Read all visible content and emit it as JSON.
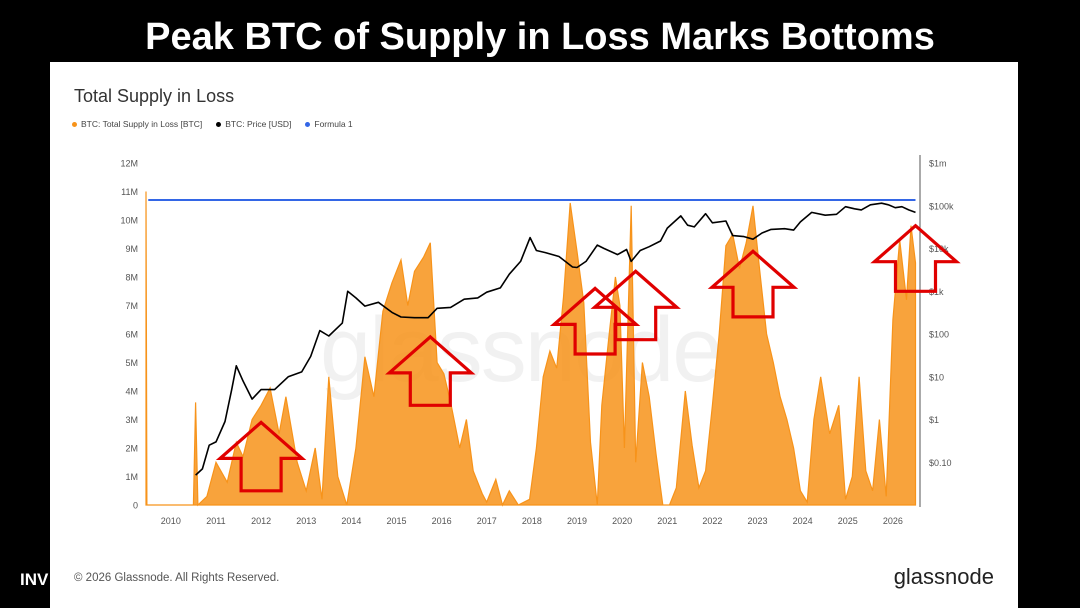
{
  "headline": "Peak BTC of Supply in Loss Marks Bottoms",
  "left_fragment": "INV",
  "footer": {
    "copyright": "© 2026 Glassnode. All Rights Reserved.",
    "logo": "glassnode"
  },
  "watermark": "glassnode",
  "colors": {
    "supply": "#F7931A",
    "price": "#000000",
    "formula": "#3366E6",
    "arrow": "#E00000"
  },
  "chart_data": {
    "type": "area",
    "title": "Total Supply in Loss",
    "legend": [
      {
        "name": "BTC: Total Supply in Loss [BTC]",
        "color": "#F7931A"
      },
      {
        "name": "BTC: Price [USD]",
        "color": "#000000"
      },
      {
        "name": "Formula 1",
        "color": "#3366E6"
      }
    ],
    "legend_position": "top-left",
    "x_ticks": [
      "2010",
      "2011",
      "2012",
      "2013",
      "2014",
      "2015",
      "2016",
      "2017",
      "2018",
      "2019",
      "2020",
      "2021",
      "2022",
      "2023",
      "2024",
      "2025",
      "2026"
    ],
    "xlim": [
      2009.45,
      2026.6
    ],
    "y_left_ticks": [
      "0",
      "1M",
      "2M",
      "3M",
      "4M",
      "5M",
      "6M",
      "7M",
      "8M",
      "9M",
      "10M",
      "11M",
      "12M"
    ],
    "ylim_left": [
      0,
      12000000
    ],
    "y_right_ticks": [
      "$0.10",
      "$1",
      "$10",
      "$100",
      "$1k",
      "$10k",
      "$100k",
      "$1m"
    ],
    "ylim_right": [
      0.01,
      1000000
    ],
    "y_right_scale": "log",
    "grid": false,
    "series": [
      {
        "name": "BTC: Total Supply in Loss [BTC]",
        "axis": "left",
        "points": [
          [
            2009.45,
            11000000
          ],
          [
            2009.47,
            0
          ],
          [
            2010.5,
            0
          ],
          [
            2010.55,
            3600000
          ],
          [
            2010.6,
            0
          ],
          [
            2010.8,
            300000
          ],
          [
            2011.0,
            1500000
          ],
          [
            2011.25,
            800000
          ],
          [
            2011.45,
            2200000
          ],
          [
            2011.6,
            1700000
          ],
          [
            2011.8,
            3000000
          ],
          [
            2012.0,
            3500000
          ],
          [
            2012.2,
            4100000
          ],
          [
            2012.4,
            2500000
          ],
          [
            2012.55,
            3800000
          ],
          [
            2012.8,
            1500000
          ],
          [
            2013.0,
            500000
          ],
          [
            2013.2,
            2000000
          ],
          [
            2013.35,
            200000
          ],
          [
            2013.5,
            4500000
          ],
          [
            2013.7,
            1000000
          ],
          [
            2013.9,
            0
          ],
          [
            2014.1,
            2000000
          ],
          [
            2014.3,
            5200000
          ],
          [
            2014.5,
            3800000
          ],
          [
            2014.7,
            6800000
          ],
          [
            2014.9,
            7800000
          ],
          [
            2015.1,
            8600000
          ],
          [
            2015.25,
            7000000
          ],
          [
            2015.4,
            8200000
          ],
          [
            2015.6,
            8700000
          ],
          [
            2015.75,
            9200000
          ],
          [
            2015.9,
            5000000
          ],
          [
            2016.05,
            4600000
          ],
          [
            2016.2,
            3600000
          ],
          [
            2016.4,
            2000000
          ],
          [
            2016.55,
            3000000
          ],
          [
            2016.7,
            1200000
          ],
          [
            2016.9,
            400000
          ],
          [
            2017.0,
            100000
          ],
          [
            2017.2,
            900000
          ],
          [
            2017.35,
            0
          ],
          [
            2017.5,
            500000
          ],
          [
            2017.7,
            0
          ],
          [
            2017.95,
            200000
          ],
          [
            2018.1,
            2000000
          ],
          [
            2018.25,
            4500000
          ],
          [
            2018.4,
            5400000
          ],
          [
            2018.55,
            4800000
          ],
          [
            2018.7,
            7300000
          ],
          [
            2018.85,
            10600000
          ],
          [
            2019.0,
            8900000
          ],
          [
            2019.15,
            7100000
          ],
          [
            2019.3,
            2200000
          ],
          [
            2019.45,
            0
          ],
          [
            2019.55,
            3500000
          ],
          [
            2019.7,
            5800000
          ],
          [
            2019.85,
            8000000
          ],
          [
            2019.95,
            7000000
          ],
          [
            2020.05,
            2000000
          ],
          [
            2020.2,
            10500000
          ],
          [
            2020.3,
            1500000
          ],
          [
            2020.45,
            5000000
          ],
          [
            2020.6,
            3800000
          ],
          [
            2020.75,
            1800000
          ],
          [
            2020.9,
            0
          ],
          [
            2021.05,
            0
          ],
          [
            2021.2,
            600000
          ],
          [
            2021.4,
            4000000
          ],
          [
            2021.55,
            2100000
          ],
          [
            2021.7,
            600000
          ],
          [
            2021.85,
            1200000
          ],
          [
            2022.0,
            3500000
          ],
          [
            2022.15,
            6000000
          ],
          [
            2022.3,
            9100000
          ],
          [
            2022.45,
            9500000
          ],
          [
            2022.6,
            8300000
          ],
          [
            2022.75,
            9200000
          ],
          [
            2022.9,
            10500000
          ],
          [
            2023.05,
            8200000
          ],
          [
            2023.2,
            6000000
          ],
          [
            2023.35,
            5000000
          ],
          [
            2023.5,
            3800000
          ],
          [
            2023.65,
            3000000
          ],
          [
            2023.8,
            2000000
          ],
          [
            2023.95,
            500000
          ],
          [
            2024.1,
            100000
          ],
          [
            2024.25,
            3000000
          ],
          [
            2024.4,
            4500000
          ],
          [
            2024.6,
            2500000
          ],
          [
            2024.8,
            3500000
          ],
          [
            2024.95,
            200000
          ],
          [
            2025.1,
            1000000
          ],
          [
            2025.25,
            4500000
          ],
          [
            2025.4,
            1200000
          ],
          [
            2025.55,
            500000
          ],
          [
            2025.7,
            3000000
          ],
          [
            2025.85,
            300000
          ],
          [
            2026.0,
            6500000
          ],
          [
            2026.15,
            9300000
          ],
          [
            2026.3,
            7200000
          ],
          [
            2026.4,
            9800000
          ],
          [
            2026.5,
            8500000
          ]
        ]
      },
      {
        "name": "BTC: Price [USD]",
        "axis": "right",
        "points": [
          [
            2010.55,
            0.05
          ],
          [
            2010.7,
            0.07
          ],
          [
            2010.85,
            0.25
          ],
          [
            2011.0,
            0.3
          ],
          [
            2011.2,
            0.9
          ],
          [
            2011.35,
            5
          ],
          [
            2011.45,
            18
          ],
          [
            2011.6,
            8
          ],
          [
            2011.8,
            3
          ],
          [
            2012.0,
            5
          ],
          [
            2012.3,
            5
          ],
          [
            2012.6,
            10
          ],
          [
            2012.9,
            13
          ],
          [
            2013.1,
            30
          ],
          [
            2013.3,
            120
          ],
          [
            2013.5,
            90
          ],
          [
            2013.8,
            180
          ],
          [
            2013.92,
            1000
          ],
          [
            2014.1,
            700
          ],
          [
            2014.3,
            450
          ],
          [
            2014.6,
            550
          ],
          [
            2014.9,
            320
          ],
          [
            2015.1,
            250
          ],
          [
            2015.4,
            240
          ],
          [
            2015.7,
            240
          ],
          [
            2015.9,
            400
          ],
          [
            2016.2,
            420
          ],
          [
            2016.5,
            650
          ],
          [
            2016.8,
            700
          ],
          [
            2017.0,
            950
          ],
          [
            2017.3,
            1200
          ],
          [
            2017.5,
            2500
          ],
          [
            2017.75,
            5000
          ],
          [
            2017.96,
            18000
          ],
          [
            2018.1,
            9000
          ],
          [
            2018.3,
            8000
          ],
          [
            2018.6,
            6500
          ],
          [
            2018.9,
            3700
          ],
          [
            2019.0,
            3600
          ],
          [
            2019.2,
            5000
          ],
          [
            2019.45,
            12000
          ],
          [
            2019.6,
            10000
          ],
          [
            2019.9,
            7200
          ],
          [
            2020.1,
            9500
          ],
          [
            2020.2,
            5000
          ],
          [
            2020.4,
            9000
          ],
          [
            2020.6,
            11000
          ],
          [
            2020.85,
            15000
          ],
          [
            2021.0,
            30000
          ],
          [
            2021.3,
            58000
          ],
          [
            2021.45,
            35000
          ],
          [
            2021.6,
            32000
          ],
          [
            2021.85,
            65000
          ],
          [
            2022.0,
            40000
          ],
          [
            2022.3,
            44000
          ],
          [
            2022.45,
            20000
          ],
          [
            2022.7,
            19000
          ],
          [
            2022.9,
            16500
          ],
          [
            2023.1,
            23000
          ],
          [
            2023.3,
            28000
          ],
          [
            2023.6,
            29000
          ],
          [
            2023.8,
            27000
          ],
          [
            2023.95,
            42000
          ],
          [
            2024.2,
            70000
          ],
          [
            2024.5,
            60000
          ],
          [
            2024.75,
            63000
          ],
          [
            2024.95,
            95000
          ],
          [
            2025.15,
            85000
          ],
          [
            2025.3,
            80000
          ],
          [
            2025.5,
            105000
          ],
          [
            2025.75,
            115000
          ],
          [
            2025.9,
            105000
          ],
          [
            2026.05,
            90000
          ],
          [
            2026.2,
            95000
          ],
          [
            2026.35,
            80000
          ],
          [
            2026.5,
            70000
          ]
        ]
      },
      {
        "name": "Formula 1",
        "axis": "left",
        "points": [
          [
            2009.5,
            10700000
          ],
          [
            2026.5,
            10700000
          ]
        ]
      }
    ],
    "annotations": [
      {
        "type": "arrow-up",
        "cx": 2012.0,
        "tip": 2900000,
        "base": 500000
      },
      {
        "type": "arrow-up",
        "cx": 2015.75,
        "tip": 5900000,
        "base": 3500000
      },
      {
        "type": "arrow-up",
        "cx": 2019.4,
        "tip": 7600000,
        "base": 5300000
      },
      {
        "type": "arrow-up",
        "cx": 2020.3,
        "tip": 8200000,
        "base": 5800000
      },
      {
        "type": "arrow-up",
        "cx": 2022.9,
        "tip": 8900000,
        "base": 6600000
      },
      {
        "type": "arrow-up",
        "cx": 2026.5,
        "tip": 9800000,
        "base": 7500000
      }
    ]
  }
}
